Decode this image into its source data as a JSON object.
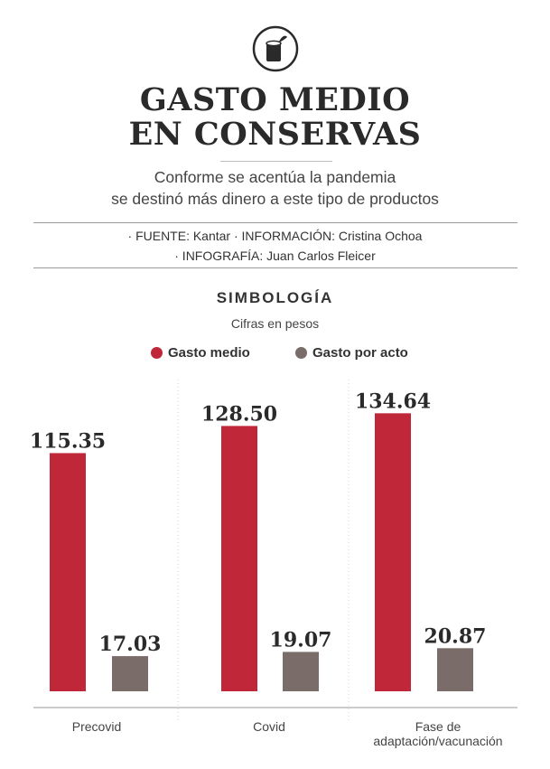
{
  "header": {
    "icon": "canned-food-icon",
    "title_line1": "GASTO MEDIO",
    "title_line2": "EN CONSERVAS",
    "subtitle_line1": "Conforme se acentúa la pandemia",
    "subtitle_line2": "se destinó más dinero a este tipo de productos"
  },
  "credits": {
    "line1": "· FUENTE: Kantar · INFORMACIÓN: Cristina Ochoa",
    "line2": "· INFOGRAFÍA: Juan Carlos Fleicer"
  },
  "legend": {
    "title": "SIMBOLOGÍA",
    "subtitle": "Cifras en pesos",
    "items": [
      {
        "label": "Gasto medio",
        "color": "#c0283a"
      },
      {
        "label": "Gasto por acto",
        "color": "#7a6c68"
      }
    ]
  },
  "chart_data": {
    "type": "bar",
    "categories": [
      "Precovid",
      "Covid",
      "Fase de adaptación/vacunación"
    ],
    "category_lines": [
      [
        "Precovid"
      ],
      [
        "Covid"
      ],
      [
        "Fase de",
        "adaptación/vacunación"
      ]
    ],
    "series": [
      {
        "name": "Gasto medio",
        "values": [
          115.35,
          128.5,
          134.64
        ],
        "labels": [
          "115.35",
          "128.50",
          "134.64"
        ],
        "color": "#c0283a"
      },
      {
        "name": "Gasto por acto",
        "values": [
          17.03,
          19.07,
          20.87
        ],
        "labels": [
          "17.03",
          "19.07",
          "20.87"
        ],
        "color": "#7a6c68"
      }
    ],
    "ylim": [
      0,
      140
    ],
    "grid": false,
    "legend_position": "top"
  }
}
